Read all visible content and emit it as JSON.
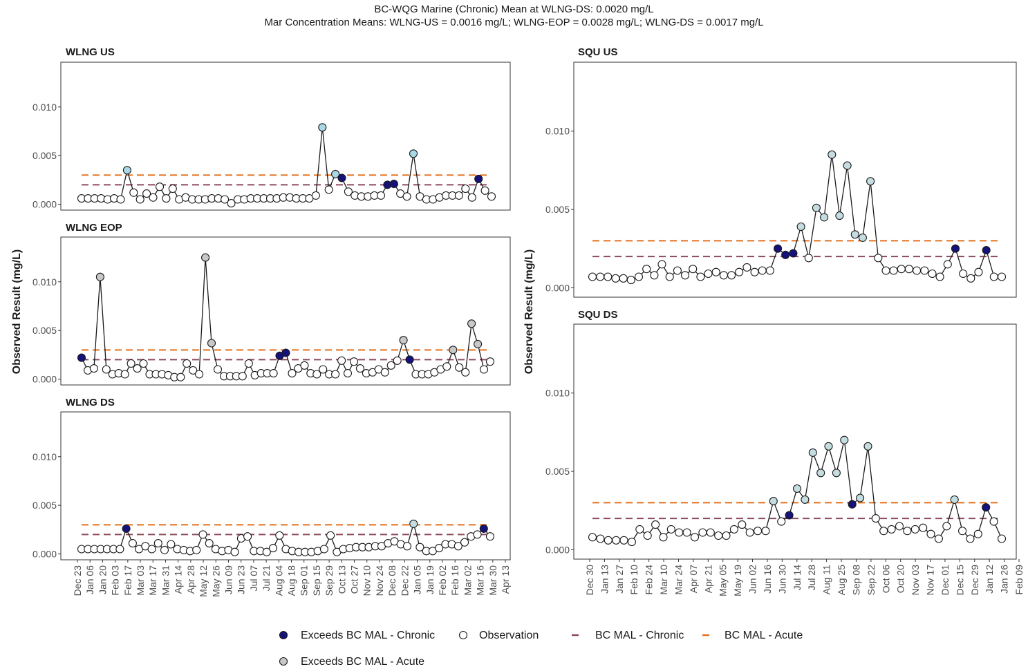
{
  "header": {
    "line1": "BC-WQG Marine (Chronic) Mean at WLNG-DS: 0.0020 mg/L",
    "line2": "Mar Concentration Means: WLNG-US = 0.0016 mg/L; WLNG-EOP = 0.0028 mg/L; WLNG-DS = 0.0017 mg/L"
  },
  "colors": {
    "chronic_exceed": "#15137a",
    "acute_exceed_left": "#a9d8e6",
    "acute_exceed_right": "#c5dde0",
    "acute_exceed_grey": "#c8c8c8",
    "chronic_line": "#8b4a5a",
    "acute_line": "#e3701b"
  },
  "legend": {
    "items": [
      {
        "label": "Exceeds BC MAL - Chronic",
        "symbol": "filled-circle",
        "color": "#15137a"
      },
      {
        "label": "Observation",
        "symbol": "open-circle",
        "color": "#ffffff"
      },
      {
        "label": "BC MAL - Chronic",
        "symbol": "dash",
        "color": "#8b4a5a"
      },
      {
        "label": "BC MAL - Acute",
        "symbol": "dash",
        "color": "#e3701b"
      },
      {
        "label": "Exceeds BC MAL - Acute",
        "symbol": "filled-circle",
        "color": "#c8c8c8"
      }
    ]
  },
  "chart_data": [
    {
      "type": "line",
      "title": "WLNG US",
      "ylabel": "Observed Result (mg/L)",
      "ylim": [
        -0.0006,
        0.0146
      ],
      "yticks": [
        "0.000",
        "0.005",
        "0.010"
      ],
      "xticks": [
        "Dec 23",
        "Jan 06",
        "Jan 20",
        "Feb 03",
        "Feb 17",
        "Mar 03",
        "Mar 17",
        "Mar 31",
        "Apr 14",
        "Apr 28",
        "May 12",
        "May 26",
        "Jun 09",
        "Jun 23",
        "Jul 07",
        "Jul 21",
        "Aug 04",
        "Aug 18",
        "Sep 01",
        "Sep 15",
        "Sep 29",
        "Oct 13",
        "Oct 27",
        "Nov 10",
        "Nov 24",
        "Dec 08",
        "Dec 22",
        "Jan 05",
        "Jan 19",
        "Feb 02",
        "Feb 16",
        "Mar 02",
        "Mar 16",
        "Mar 30",
        "Apr 13"
      ],
      "reference_lines": {
        "chronic": 0.002,
        "acute": 0.003
      },
      "values": [
        0.0006,
        0.0006,
        0.0006,
        0.0006,
        0.0005,
        0.0006,
        0.0005,
        0.0035,
        0.0012,
        0.0005,
        0.0011,
        0.0007,
        0.0018,
        0.0006,
        0.0016,
        0.0005,
        0.0007,
        0.0005,
        0.0005,
        0.0005,
        0.0006,
        0.0006,
        0.0005,
        0.0001,
        0.0005,
        0.0005,
        0.0006,
        0.0006,
        0.0006,
        0.0006,
        0.0006,
        0.0007,
        0.0007,
        0.0006,
        0.0006,
        0.0006,
        0.0009,
        0.0079,
        0.0015,
        0.0031,
        0.0027,
        0.0013,
        0.0009,
        0.0008,
        0.0008,
        0.0009,
        0.0009,
        0.002,
        0.0021,
        0.0011,
        0.0008,
        0.0052,
        0.0008,
        0.0005,
        0.0005,
        0.0007,
        0.0009,
        0.0009,
        0.0009,
        0.0016,
        0.0007,
        0.0026,
        0.0014,
        0.0008
      ],
      "status": [
        "o",
        "o",
        "o",
        "o",
        "o",
        "o",
        "o",
        "a",
        "o",
        "o",
        "o",
        "o",
        "o",
        "o",
        "o",
        "o",
        "o",
        "o",
        "o",
        "o",
        "o",
        "o",
        "o",
        "o",
        "o",
        "o",
        "o",
        "o",
        "o",
        "o",
        "o",
        "o",
        "o",
        "o",
        "o",
        "o",
        "o",
        "a",
        "o",
        "a",
        "c",
        "o",
        "o",
        "o",
        "o",
        "o",
        "o",
        "c",
        "c",
        "o",
        "o",
        "a",
        "o",
        "o",
        "o",
        "o",
        "o",
        "o",
        "o",
        "o",
        "o",
        "c",
        "o",
        "o"
      ]
    },
    {
      "type": "line",
      "title": "WLNG EOP",
      "ylabel": "Observed Result (mg/L)",
      "ylim": [
        -0.0006,
        0.0146
      ],
      "yticks": [
        "0.000",
        "0.005",
        "0.010"
      ],
      "reference_lines": {
        "chronic": 0.002,
        "acute": 0.003
      },
      "values": [
        0.0022,
        0.0009,
        0.0011,
        0.0105,
        0.001,
        0.0005,
        0.0006,
        0.0005,
        0.0016,
        0.0011,
        0.0016,
        0.0005,
        0.0005,
        0.0005,
        0.0004,
        0.0002,
        0.0002,
        0.0016,
        0.0009,
        0.0005,
        0.0125,
        0.0037,
        0.001,
        0.0003,
        0.0003,
        0.0003,
        0.0003,
        0.0016,
        0.0004,
        0.0006,
        0.0006,
        0.0006,
        0.0024,
        0.0027,
        0.0006,
        0.0011,
        0.0014,
        0.0006,
        0.0005,
        0.001,
        0.0005,
        0.0005,
        0.0019,
        0.0006,
        0.0018,
        0.0011,
        0.0006,
        0.0007,
        0.001,
        0.0007,
        0.0014,
        0.0019,
        0.004,
        0.002,
        0.0005,
        0.0005,
        0.0005,
        0.0007,
        0.001,
        0.0013,
        0.003,
        0.0012,
        0.0007,
        0.0057,
        0.0036,
        0.001,
        0.0018
      ],
      "status": [
        "c",
        "o",
        "o",
        "a",
        "o",
        "o",
        "o",
        "o",
        "o",
        "o",
        "o",
        "o",
        "o",
        "o",
        "o",
        "o",
        "o",
        "o",
        "o",
        "o",
        "a",
        "a",
        "o",
        "o",
        "o",
        "o",
        "o",
        "o",
        "o",
        "o",
        "o",
        "o",
        "c",
        "c",
        "o",
        "o",
        "o",
        "o",
        "o",
        "o",
        "o",
        "o",
        "o",
        "o",
        "o",
        "o",
        "o",
        "o",
        "o",
        "o",
        "o",
        "o",
        "a",
        "c",
        "o",
        "o",
        "o",
        "o",
        "o",
        "o",
        "a",
        "o",
        "o",
        "a",
        "a",
        "o",
        "o"
      ]
    },
    {
      "type": "line",
      "title": "WLNG DS",
      "ylabel": "Observed Result (mg/L)",
      "ylim": [
        -0.0006,
        0.0146
      ],
      "yticks": [
        "0.000",
        "0.005",
        "0.010"
      ],
      "reference_lines": {
        "chronic": 0.002,
        "acute": 0.003
      },
      "values": [
        0.0005,
        0.0005,
        0.0005,
        0.0005,
        0.0005,
        0.0005,
        0.0005,
        0.0026,
        0.0011,
        0.0005,
        0.0008,
        0.0005,
        0.0011,
        0.0004,
        0.001,
        0.0005,
        0.0004,
        0.0003,
        0.0004,
        0.002,
        0.0011,
        0.0005,
        0.0003,
        0.0004,
        0.0002,
        0.0016,
        0.0018,
        0.0003,
        0.0003,
        0.0002,
        0.0006,
        0.0019,
        0.0005,
        0.0003,
        0.0002,
        0.0002,
        0.0002,
        0.0003,
        0.0005,
        0.0019,
        0.0002,
        0.0005,
        0.0006,
        0.0007,
        0.0007,
        0.0007,
        0.0008,
        0.0008,
        0.0011,
        0.0013,
        0.001,
        0.0008,
        0.0031,
        0.0007,
        0.0003,
        0.0003,
        0.0006,
        0.001,
        0.001,
        0.0008,
        0.0012,
        0.0018,
        0.002,
        0.0026,
        0.0018
      ],
      "status": [
        "o",
        "o",
        "o",
        "o",
        "o",
        "o",
        "o",
        "c",
        "o",
        "o",
        "o",
        "o",
        "o",
        "o",
        "o",
        "o",
        "o",
        "o",
        "o",
        "o",
        "o",
        "o",
        "o",
        "o",
        "o",
        "o",
        "o",
        "o",
        "o",
        "o",
        "o",
        "o",
        "o",
        "o",
        "o",
        "o",
        "o",
        "o",
        "o",
        "o",
        "o",
        "o",
        "o",
        "o",
        "o",
        "o",
        "o",
        "o",
        "o",
        "o",
        "o",
        "o",
        "a",
        "o",
        "o",
        "o",
        "o",
        "o",
        "o",
        "o",
        "o",
        "o",
        "o",
        "c",
        "o"
      ]
    },
    {
      "type": "line",
      "title": "SQU US",
      "ylabel": "Observed Result (mg/L)",
      "ylim": [
        -0.0006,
        0.0144
      ],
      "yticks": [
        "0.000",
        "0.005",
        "0.010"
      ],
      "xticks": [
        "Dec 30",
        "Jan 13",
        "Jan 27",
        "Feb 10",
        "Feb 24",
        "Mar 10",
        "Mar 24",
        "Apr 07",
        "Apr 21",
        "May 05",
        "May 19",
        "Jun 02",
        "Jun 16",
        "Jun 30",
        "Jul 14",
        "Jul 28",
        "Aug 11",
        "Aug 25",
        "Sep 08",
        "Sep 22",
        "Oct 06",
        "Oct 20",
        "Nov 03",
        "Nov 17",
        "Dec 01",
        "Dec 15",
        "Dec 29",
        "Jan 12",
        "Jan 26",
        "Feb 09"
      ],
      "reference_lines": {
        "chronic": 0.002,
        "acute": 0.003
      },
      "values": [
        0.0007,
        0.0007,
        0.0007,
        0.0006,
        0.0006,
        0.0005,
        0.0007,
        0.0012,
        0.0008,
        0.0015,
        0.0007,
        0.0011,
        0.0008,
        0.0012,
        0.0007,
        0.0009,
        0.001,
        0.0008,
        0.0008,
        0.001,
        0.0013,
        0.001,
        0.0011,
        0.0011,
        0.0025,
        0.0021,
        0.0022,
        0.0039,
        0.0019,
        0.0051,
        0.0045,
        0.0085,
        0.0046,
        0.0078,
        0.0034,
        0.0032,
        0.0068,
        0.0019,
        0.0011,
        0.0011,
        0.0012,
        0.0012,
        0.0011,
        0.0011,
        0.0009,
        0.0007,
        0.0015,
        0.0025,
        0.0009,
        0.0006,
        0.001,
        0.0024,
        0.0007,
        0.0007
      ],
      "status": [
        "o",
        "o",
        "o",
        "o",
        "o",
        "o",
        "o",
        "o",
        "o",
        "o",
        "o",
        "o",
        "o",
        "o",
        "o",
        "o",
        "o",
        "o",
        "o",
        "o",
        "o",
        "o",
        "o",
        "o",
        "c",
        "c",
        "c",
        "a",
        "o",
        "a",
        "a",
        "a",
        "a",
        "a",
        "a",
        "a",
        "a",
        "o",
        "o",
        "o",
        "o",
        "o",
        "o",
        "o",
        "o",
        "o",
        "o",
        "c",
        "o",
        "o",
        "o",
        "c",
        "o",
        "o"
      ]
    },
    {
      "type": "line",
      "title": "SQU DS",
      "ylabel": "Observed Result (mg/L)",
      "ylim": [
        -0.0006,
        0.0144
      ],
      "yticks": [
        "0.000",
        "0.005",
        "0.010"
      ],
      "reference_lines": {
        "chronic": 0.002,
        "acute": 0.003
      },
      "values": [
        0.0008,
        0.0007,
        0.0006,
        0.0006,
        0.0006,
        0.0005,
        0.0013,
        0.0009,
        0.0016,
        0.0008,
        0.0013,
        0.0011,
        0.0011,
        0.0008,
        0.0011,
        0.0011,
        0.0009,
        0.0009,
        0.0013,
        0.0016,
        0.0011,
        0.0012,
        0.0012,
        0.0031,
        0.0018,
        0.0022,
        0.0039,
        0.0032,
        0.0062,
        0.0049,
        0.0066,
        0.0049,
        0.007,
        0.0029,
        0.0033,
        0.0066,
        0.002,
        0.0012,
        0.0013,
        0.0015,
        0.0012,
        0.0013,
        0.0014,
        0.001,
        0.0007,
        0.0015,
        0.0032,
        0.0012,
        0.0007,
        0.001,
        0.0027,
        0.0018,
        0.0007
      ],
      "status": [
        "o",
        "o",
        "o",
        "o",
        "o",
        "o",
        "o",
        "o",
        "o",
        "o",
        "o",
        "o",
        "o",
        "o",
        "o",
        "o",
        "o",
        "o",
        "o",
        "o",
        "o",
        "o",
        "o",
        "a",
        "o",
        "c",
        "a",
        "a",
        "a",
        "a",
        "a",
        "a",
        "a",
        "c",
        "a",
        "a",
        "o",
        "o",
        "o",
        "o",
        "o",
        "o",
        "o",
        "o",
        "o",
        "o",
        "a",
        "o",
        "o",
        "o",
        "c",
        "o",
        "o"
      ]
    }
  ]
}
